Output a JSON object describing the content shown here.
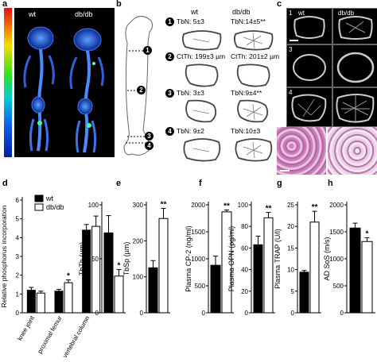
{
  "panels": {
    "a": {
      "label": "a",
      "left_label": "wt",
      "right_label": "db/db"
    },
    "b": {
      "label": "b",
      "col_wt": "wt",
      "col_dbdb": "db/db",
      "markers": [
        "1",
        "2",
        "3",
        "4"
      ],
      "rows": [
        {
          "num": "1",
          "wt": "TbN: 5±3",
          "dbdb": "TbN:14±5**"
        },
        {
          "num": "2",
          "wt": "CtTh: 199±3 µm",
          "dbdb": "CtTh: 201±2 µm"
        },
        {
          "num": "3",
          "wt": "TbN: 3±3",
          "dbdb": "TbN:9±4**"
        },
        {
          "num": "4",
          "wt": "TbN: 9±2",
          "dbdb": "TbN:10±3"
        }
      ]
    },
    "c": {
      "label": "c",
      "left_label": "wt",
      "right_label": "db/db",
      "row_labels": [
        "1",
        "3",
        "4"
      ]
    },
    "d": {
      "label": "d"
    },
    "e": {
      "label": "e"
    },
    "f": {
      "label": "f"
    },
    "g": {
      "label": "g"
    },
    "h": {
      "label": "h"
    }
  },
  "legend": {
    "wt": "wt",
    "dbdb": "db/db"
  },
  "colors": {
    "wt": "#000000",
    "dbdb": "#ffffff"
  },
  "chart_data": [
    {
      "id": "d",
      "type": "bar",
      "ylabel": "Relative phosphorus incorporation",
      "categories": [
        "knee joint",
        "proximal femur",
        "vertebral column"
      ],
      "ylim": [
        0,
        6
      ],
      "yticks": [
        0,
        1,
        2,
        3,
        4,
        5,
        6
      ],
      "series": [
        {
          "name": "wt",
          "values": [
            1.2,
            1.15,
            4.4
          ],
          "err": [
            0.15,
            0.1,
            0.3
          ]
        },
        {
          "name": "db/db",
          "values": [
            1.05,
            1.6,
            4.6
          ],
          "err": [
            0.1,
            0.15,
            0.55
          ]
        }
      ],
      "annotations": [
        {
          "cat": 1,
          "series": 1,
          "text": "*"
        }
      ]
    },
    {
      "id": "e1",
      "type": "bar",
      "ylabel": "TbTh (µm)",
      "ylim": [
        0,
        100
      ],
      "yticks": [
        0,
        50,
        100
      ],
      "series": [
        {
          "name": "wt",
          "values": [
            74
          ],
          "err": [
            16
          ]
        },
        {
          "name": "db/db",
          "values": [
            34
          ],
          "err": [
            6
          ]
        }
      ],
      "annotations": [
        {
          "series": 1,
          "text": "*"
        }
      ]
    },
    {
      "id": "e2",
      "type": "bar",
      "ylabel": "TbSp (µm)",
      "ylim": [
        0,
        300
      ],
      "yticks": [
        0,
        100,
        200,
        300
      ],
      "series": [
        {
          "name": "wt",
          "values": [
            125
          ],
          "err": [
            20
          ]
        },
        {
          "name": "db/db",
          "values": [
            262
          ],
          "err": [
            28
          ]
        }
      ],
      "annotations": [
        {
          "series": 1,
          "text": "**"
        }
      ]
    },
    {
      "id": "f1",
      "type": "bar",
      "ylabel": "Plasma CP-2 (ng/ml)",
      "ylim": [
        0,
        2000
      ],
      "yticks": [
        0,
        500,
        1000,
        1500,
        2000
      ],
      "series": [
        {
          "name": "wt",
          "values": [
            880
          ],
          "err": [
            170
          ]
        },
        {
          "name": "db/db",
          "values": [
            1870
          ],
          "err": [
            35
          ]
        }
      ],
      "annotations": [
        {
          "series": 1,
          "text": "**"
        }
      ]
    },
    {
      "id": "f2",
      "type": "bar",
      "ylabel": "Plasma OPN (pg/ml)",
      "ylim": [
        0,
        100
      ],
      "yticks": [
        0,
        20,
        40,
        60,
        80,
        100
      ],
      "series": [
        {
          "name": "wt",
          "values": [
            63
          ],
          "err": [
            8
          ]
        },
        {
          "name": "db/db",
          "values": [
            88
          ],
          "err": [
            5
          ]
        }
      ],
      "annotations": [
        {
          "series": 1,
          "text": "**"
        }
      ]
    },
    {
      "id": "g",
      "type": "bar",
      "ylabel": "Plasma TRAP (U/l)",
      "ylim": [
        0,
        25
      ],
      "yticks": [
        0,
        5,
        10,
        15,
        20,
        25
      ],
      "series": [
        {
          "name": "wt",
          "values": [
            9.4
          ],
          "err": [
            0.4
          ]
        },
        {
          "name": "db/db",
          "values": [
            21
          ],
          "err": [
            2.5
          ]
        }
      ],
      "annotations": [
        {
          "series": 1,
          "text": "**"
        }
      ]
    },
    {
      "id": "h",
      "type": "bar",
      "ylabel": "AD SoS (m/s)",
      "ylim": [
        0,
        2000
      ],
      "yticks": [
        0,
        500,
        1000,
        1500,
        2000
      ],
      "series": [
        {
          "name": "wt",
          "values": [
            1570
          ],
          "err": [
            90
          ]
        },
        {
          "name": "db/db",
          "values": [
            1320
          ],
          "err": [
            70
          ]
        }
      ],
      "annotations": [
        {
          "series": 1,
          "text": "*"
        }
      ]
    }
  ]
}
